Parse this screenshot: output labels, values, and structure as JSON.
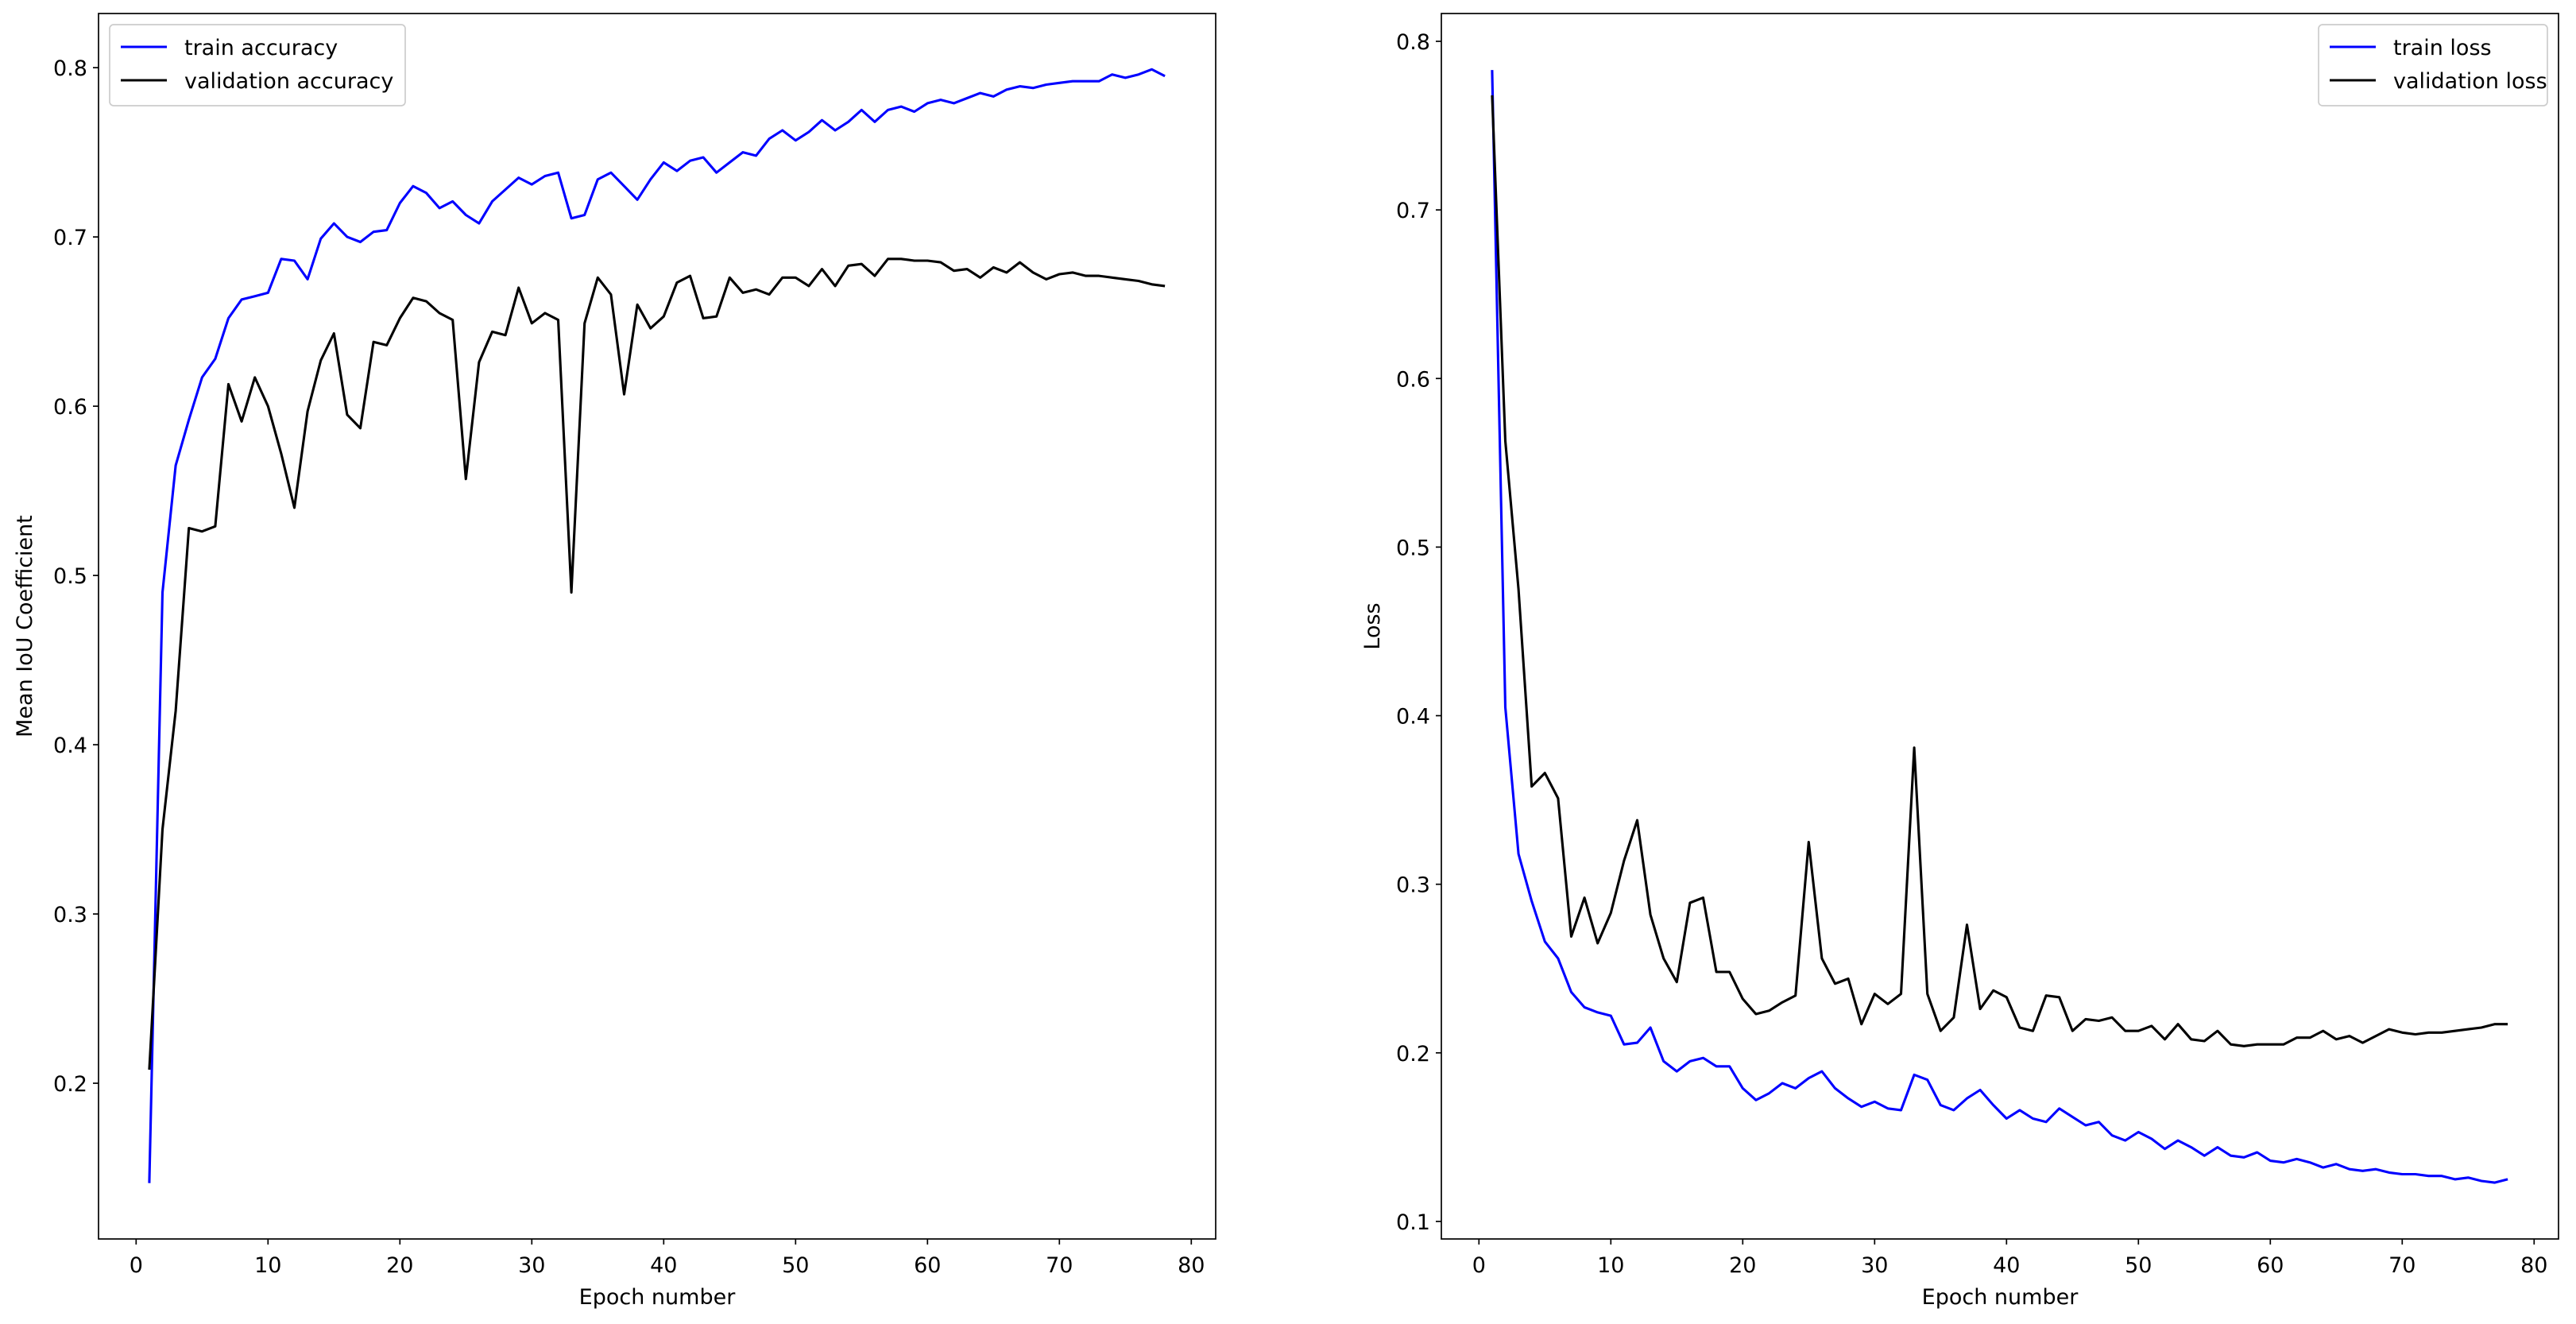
{
  "chart_data": [
    {
      "type": "line",
      "title": "",
      "xlabel": "Epoch number",
      "ylabel": "Mean IoU Coefficient",
      "xlim": [
        -2.85,
        81.85
      ],
      "ylim": [
        0.108,
        0.832
      ],
      "xticks": [
        0,
        10,
        20,
        30,
        40,
        50,
        60,
        70,
        80
      ],
      "yticks": [
        0.2,
        0.3,
        0.4,
        0.5,
        0.6,
        0.7,
        0.8
      ],
      "grid": false,
      "legend_position": "top-left",
      "series": [
        {
          "name": "train accuracy",
          "color": "#0000ff",
          "values": [
            0.141,
            0.49,
            0.565,
            0.592,
            0.617,
            0.628,
            0.652,
            0.663,
            0.665,
            0.667,
            0.687,
            0.686,
            0.675,
            0.699,
            0.708,
            0.7,
            0.697,
            0.703,
            0.704,
            0.72,
            0.73,
            0.726,
            0.717,
            0.721,
            0.713,
            0.708,
            0.721,
            0.728,
            0.735,
            0.731,
            0.736,
            0.738,
            0.711,
            0.713,
            0.734,
            0.738,
            0.73,
            0.722,
            0.734,
            0.744,
            0.739,
            0.745,
            0.747,
            0.738,
            0.744,
            0.75,
            0.748,
            0.758,
            0.763,
            0.757,
            0.762,
            0.769,
            0.763,
            0.768,
            0.775,
            0.768,
            0.775,
            0.777,
            0.774,
            0.779,
            0.781,
            0.779,
            0.782,
            0.785,
            0.783,
            0.787,
            0.789,
            0.788,
            0.79,
            0.791,
            0.792,
            0.792,
            0.792,
            0.796,
            0.794,
            0.796,
            0.799,
            0.795
          ]
        },
        {
          "name": "validation accuracy",
          "color": "#000000",
          "values": [
            0.208,
            0.35,
            0.42,
            0.528,
            0.526,
            0.529,
            0.613,
            0.591,
            0.617,
            0.6,
            0.572,
            0.54,
            0.597,
            0.627,
            0.643,
            0.595,
            0.587,
            0.638,
            0.636,
            0.652,
            0.664,
            0.662,
            0.655,
            0.651,
            0.557,
            0.626,
            0.644,
            0.642,
            0.67,
            0.649,
            0.655,
            0.651,
            0.49,
            0.649,
            0.676,
            0.666,
            0.607,
            0.66,
            0.646,
            0.653,
            0.673,
            0.677,
            0.652,
            0.653,
            0.676,
            0.667,
            0.669,
            0.666,
            0.676,
            0.676,
            0.671,
            0.681,
            0.671,
            0.683,
            0.684,
            0.677,
            0.687,
            0.687,
            0.686,
            0.686,
            0.685,
            0.68,
            0.681,
            0.676,
            0.682,
            0.679,
            0.685,
            0.679,
            0.675,
            0.678,
            0.679,
            0.677,
            0.677,
            0.676,
            0.675,
            0.674,
            0.672,
            0.671
          ]
        }
      ]
    },
    {
      "type": "line",
      "title": "",
      "xlabel": "Epoch number",
      "ylabel": "Loss",
      "xlim": [
        -2.85,
        81.85
      ],
      "ylim": [
        0.0896,
        0.8165
      ],
      "xticks": [
        0,
        10,
        20,
        30,
        40,
        50,
        60,
        70,
        80
      ],
      "yticks": [
        0.1,
        0.2,
        0.3,
        0.4,
        0.5,
        0.6,
        0.7,
        0.8
      ],
      "grid": false,
      "legend_position": "top-right",
      "series": [
        {
          "name": "train loss",
          "color": "#0000ff",
          "values": [
            0.783,
            0.405,
            0.318,
            0.29,
            0.266,
            0.256,
            0.236,
            0.227,
            0.224,
            0.222,
            0.205,
            0.206,
            0.215,
            0.195,
            0.189,
            0.195,
            0.197,
            0.192,
            0.192,
            0.179,
            0.172,
            0.176,
            0.182,
            0.179,
            0.185,
            0.189,
            0.179,
            0.173,
            0.168,
            0.171,
            0.167,
            0.166,
            0.187,
            0.184,
            0.169,
            0.166,
            0.173,
            0.178,
            0.169,
            0.161,
            0.166,
            0.161,
            0.159,
            0.167,
            0.162,
            0.157,
            0.159,
            0.151,
            0.148,
            0.153,
            0.149,
            0.143,
            0.148,
            0.144,
            0.139,
            0.144,
            0.139,
            0.138,
            0.141,
            0.136,
            0.135,
            0.137,
            0.135,
            0.132,
            0.134,
            0.131,
            0.13,
            0.131,
            0.129,
            0.128,
            0.128,
            0.127,
            0.127,
            0.125,
            0.126,
            0.124,
            0.123,
            0.125
          ]
        },
        {
          "name": "validation loss",
          "color": "#000000",
          "values": [
            0.768,
            0.563,
            0.475,
            0.358,
            0.366,
            0.351,
            0.269,
            0.292,
            0.265,
            0.283,
            0.314,
            0.338,
            0.282,
            0.256,
            0.242,
            0.289,
            0.292,
            0.248,
            0.248,
            0.232,
            0.223,
            0.225,
            0.23,
            0.234,
            0.325,
            0.256,
            0.241,
            0.244,
            0.217,
            0.235,
            0.229,
            0.235,
            0.381,
            0.235,
            0.213,
            0.221,
            0.276,
            0.226,
            0.237,
            0.233,
            0.215,
            0.213,
            0.234,
            0.233,
            0.213,
            0.22,
            0.219,
            0.221,
            0.213,
            0.213,
            0.216,
            0.208,
            0.217,
            0.208,
            0.207,
            0.213,
            0.205,
            0.204,
            0.205,
            0.205,
            0.205,
            0.209,
            0.209,
            0.213,
            0.208,
            0.21,
            0.206,
            0.21,
            0.214,
            0.212,
            0.211,
            0.212,
            0.212,
            0.213,
            0.214,
            0.215,
            0.217,
            0.217
          ]
        }
      ]
    }
  ]
}
